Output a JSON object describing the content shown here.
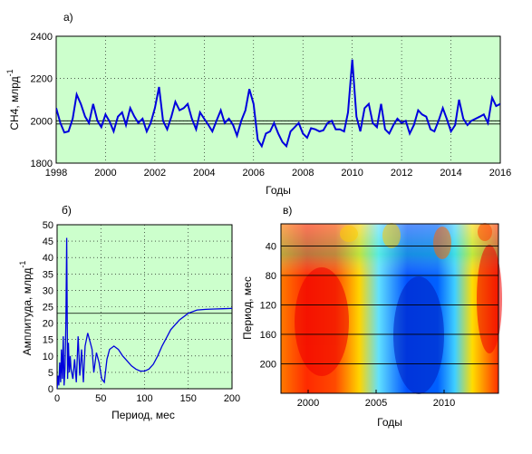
{
  "panel_labels": {
    "a": "а)",
    "b": "б)",
    "c": "в)"
  },
  "chart_data": [
    {
      "type": "line",
      "panel": "а)",
      "xlabel": "Годы",
      "ylabel": "CH4, млрд",
      "ylabel_sup": "-1",
      "xlim": [
        1998,
        2016
      ],
      "ylim": [
        1800,
        2400
      ],
      "xticks": [
        1998,
        2000,
        2002,
        2004,
        2006,
        2008,
        2010,
        2012,
        2014,
        2016
      ],
      "yticks": [
        1800,
        2000,
        2200,
        2400
      ],
      "grid": true,
      "background": "#ccffcc",
      "line_color": "#0000dd",
      "reference_lines": [
        1985,
        2000
      ],
      "x": [
        1998.0,
        1998.17,
        1998.33,
        1998.5,
        1998.67,
        1998.83,
        1999.0,
        1999.17,
        1999.33,
        1999.5,
        1999.67,
        1999.83,
        2000.0,
        2000.17,
        2000.33,
        2000.5,
        2000.67,
        2000.83,
        2001.0,
        2001.17,
        2001.33,
        2001.5,
        2001.67,
        2001.83,
        2002.0,
        2002.17,
        2002.33,
        2002.5,
        2002.67,
        2002.83,
        2003.0,
        2003.17,
        2003.33,
        2003.5,
        2003.67,
        2003.83,
        2004.0,
        2004.17,
        2004.33,
        2004.5,
        2004.67,
        2004.83,
        2005.0,
        2005.17,
        2005.33,
        2005.5,
        2005.67,
        2005.83,
        2006.0,
        2006.17,
        2006.33,
        2006.5,
        2006.67,
        2006.83,
        2007.0,
        2007.17,
        2007.33,
        2007.5,
        2007.67,
        2007.83,
        2008.0,
        2008.17,
        2008.33,
        2008.5,
        2008.67,
        2008.83,
        2009.0,
        2009.17,
        2009.33,
        2009.5,
        2009.67,
        2009.83,
        2010.0,
        2010.17,
        2010.33,
        2010.5,
        2010.67,
        2010.83,
        2011.0,
        2011.17,
        2011.33,
        2011.5,
        2011.67,
        2011.83,
        2012.0,
        2012.17,
        2012.33,
        2012.5,
        2012.67,
        2012.83,
        2013.0,
        2013.17,
        2013.33,
        2013.5,
        2013.67,
        2013.83,
        2014.0,
        2014.17,
        2014.33,
        2014.5,
        2014.67,
        2014.83,
        2015.0,
        2015.17,
        2015.33,
        2015.5,
        2015.67,
        2015.83,
        2016.0
      ],
      "y": [
        2060,
        1990,
        1945,
        1950,
        2010,
        2125,
        2080,
        2020,
        1990,
        2080,
        2000,
        1970,
        2030,
        1995,
        1950,
        2020,
        2040,
        1980,
        2060,
        2020,
        1990,
        2010,
        1950,
        1990,
        2060,
        2160,
        2000,
        1960,
        2020,
        2090,
        2050,
        2060,
        2080,
        2010,
        1960,
        2040,
        2010,
        1980,
        1950,
        2000,
        2050,
        1990,
        2010,
        1980,
        1930,
        2000,
        2050,
        2150,
        2080,
        1910,
        1880,
        1940,
        1950,
        1990,
        1940,
        1900,
        1880,
        1950,
        1970,
        1990,
        1940,
        1920,
        1965,
        1960,
        1950,
        1955,
        1990,
        2000,
        1960,
        1960,
        1950,
        2040,
        2290,
        2020,
        1950,
        2060,
        2080,
        1990,
        1970,
        2080,
        1960,
        1940,
        1980,
        2010,
        1990,
        2000,
        1940,
        1980,
        2050,
        2030,
        2020,
        1960,
        1950,
        2000,
        2060,
        2010,
        1950,
        1980,
        2100,
        2010,
        1980,
        2000,
        2010,
        2020,
        2030,
        1990,
        2110,
        2070,
        2080
      ]
    },
    {
      "type": "line",
      "panel": "б)",
      "xlabel": "Период, мес",
      "ylabel": "Амплитуда, млрд",
      "ylabel_sup": "-1",
      "xlim": [
        0,
        200
      ],
      "ylim": [
        0,
        50
      ],
      "xticks": [
        0,
        50,
        100,
        150,
        200
      ],
      "yticks": [
        0,
        5,
        10,
        15,
        20,
        25,
        30,
        35,
        40,
        45,
        50
      ],
      "grid": true,
      "background": "#ccffcc",
      "line_color": "#0000dd",
      "reference_lines": [
        23
      ],
      "x": [
        0,
        1,
        2,
        3,
        4,
        5,
        6,
        7,
        8,
        9,
        10,
        11,
        12,
        13,
        14,
        15,
        16,
        18,
        20,
        22,
        24,
        26,
        28,
        30,
        32,
        35,
        38,
        40,
        42,
        45,
        48,
        51,
        54,
        57,
        60,
        65,
        70,
        75,
        80,
        85,
        90,
        95,
        100,
        105,
        110,
        115,
        120,
        125,
        130,
        140,
        150,
        160,
        170,
        180,
        190,
        200
      ],
      "y": [
        0,
        4,
        1,
        8,
        2,
        12,
        3,
        16,
        1,
        6,
        20,
        46,
        3,
        14,
        5,
        10,
        6,
        3,
        9,
        2,
        16,
        4,
        12,
        2,
        13,
        17,
        14,
        12,
        5,
        11,
        8,
        3,
        2,
        9,
        12,
        13,
        12,
        10,
        8.5,
        7,
        6,
        5.4,
        5.4,
        6,
        7.5,
        10,
        13,
        15.5,
        18,
        21,
        23,
        24,
        24.2,
        24.3,
        24.4,
        24.5
      ]
    },
    {
      "type": "heatmap",
      "panel": "в)",
      "xlabel": "Годы",
      "ylabel": "Период, мес",
      "xlim": [
        1998,
        2014
      ],
      "ylim": [
        10,
        240
      ],
      "xticks": [
        2000,
        2005,
        2010
      ],
      "yticks": [
        40,
        80,
        120,
        160,
        200
      ],
      "reference_lines": [
        40,
        80,
        120,
        160,
        200
      ],
      "colormap": "jet",
      "description": "Wavelet amplitude map: high (red) near 2000-2003 and 2011-2014, low (blue) near 2005-2010 at long periods"
    }
  ]
}
